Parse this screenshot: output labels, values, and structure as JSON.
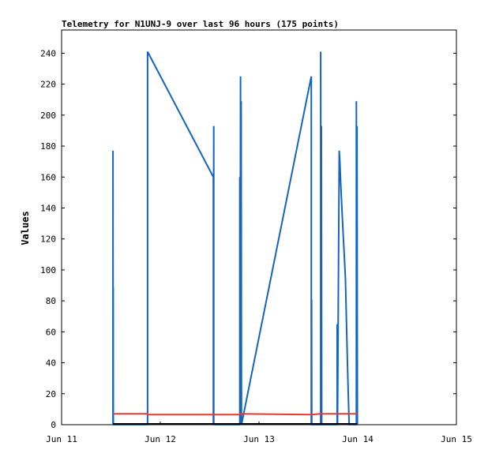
{
  "chart_data": {
    "type": "line",
    "title": "Telemetry for N1UNJ-9 over last 96 hours (175 points)",
    "xlabel": "",
    "ylabel": "Values",
    "x_ticks": [
      "Jun 11",
      "Jun 12",
      "Jun 13",
      "Jun 14",
      "Jun 15"
    ],
    "xlim": [
      "Jun 11",
      "Jun 15"
    ],
    "y_ticks": [
      0,
      20,
      40,
      60,
      80,
      100,
      120,
      140,
      160,
      180,
      200,
      220,
      240
    ],
    "ylim": [
      0,
      255
    ],
    "grid": false,
    "legend": "none",
    "colors": {
      "blue_series": "#1565c0",
      "red_series": "#e53935",
      "black_series": "#000000"
    },
    "series": [
      {
        "color": "#1565c0",
        "points": [
          [
            "Jun 11 12:30",
            0
          ],
          [
            "Jun 11 12:30",
            177
          ],
          [
            "Jun 11 12:32",
            0
          ],
          [
            "Jun 11 12:33",
            89
          ],
          [
            "Jun 11 12:34",
            0
          ],
          [
            "Jun 11 20:54",
            0
          ],
          [
            "Jun 11 20:54",
            241
          ],
          [
            "Jun 12 12:54",
            160
          ],
          [
            "Jun 12 12:54",
            0
          ],
          [
            "Jun 12 13:00",
            193
          ],
          [
            "Jun 12 13:00",
            0
          ],
          [
            "Jun 12 19:20",
            0
          ],
          [
            "Jun 12 19:20",
            160
          ],
          [
            "Jun 12 19:25",
            0
          ],
          [
            "Jun 12 19:30",
            225
          ],
          [
            "Jun 12 19:34",
            0
          ],
          [
            "Jun 12 19:40",
            209
          ],
          [
            "Jun 12 19:44",
            0
          ],
          [
            "Jun 13 12:43",
            225
          ],
          [
            "Jun 13 12:43",
            0
          ],
          [
            "Jun 13 12:47",
            81
          ],
          [
            "Jun 13 12:50",
            0
          ],
          [
            "Jun 13 15:00",
            0
          ],
          [
            "Jun 13 15:00",
            241
          ],
          [
            "Jun 13 15:05",
            0
          ],
          [
            "Jun 13 15:10",
            193
          ],
          [
            "Jun 13 15:15",
            0
          ],
          [
            "Jun 13 19:00",
            0
          ],
          [
            "Jun 13 19:00",
            65
          ],
          [
            "Jun 13 19:05",
            0
          ],
          [
            "Jun 13 19:30",
            177
          ],
          [
            "Jun 13 19:40",
            170
          ],
          [
            "Jun 13 19:50",
            158
          ],
          [
            "Jun 13 20:20",
            130
          ],
          [
            "Jun 13 21:00",
            95
          ],
          [
            "Jun 13 21:30",
            40
          ],
          [
            "Jun 13 21:55",
            0
          ],
          [
            "Jun 13 23:40",
            0
          ],
          [
            "Jun 13 23:40",
            209
          ],
          [
            "Jun 13 23:45",
            0
          ],
          [
            "Jun 13 23:50",
            193
          ],
          [
            "Jun 13 23:55",
            0
          ]
        ]
      },
      {
        "color": "#e53935",
        "points": [
          [
            "Jun 11 12:30",
            7
          ],
          [
            "Jun 11 20:54",
            7
          ],
          [
            "Jun 11 20:55",
            6.5
          ],
          [
            "Jun 12 19:20",
            6.5
          ],
          [
            "Jun 12 19:21",
            7
          ],
          [
            "Jun 13 12:43",
            6.5
          ],
          [
            "Jun 13 15:00",
            7
          ],
          [
            "Jun 13 23:55",
            7
          ]
        ]
      },
      {
        "color": "#000000",
        "points": [
          [
            "Jun 11 12:30",
            0.5
          ],
          [
            "Jun 13 23:55",
            0.5
          ]
        ]
      }
    ]
  }
}
